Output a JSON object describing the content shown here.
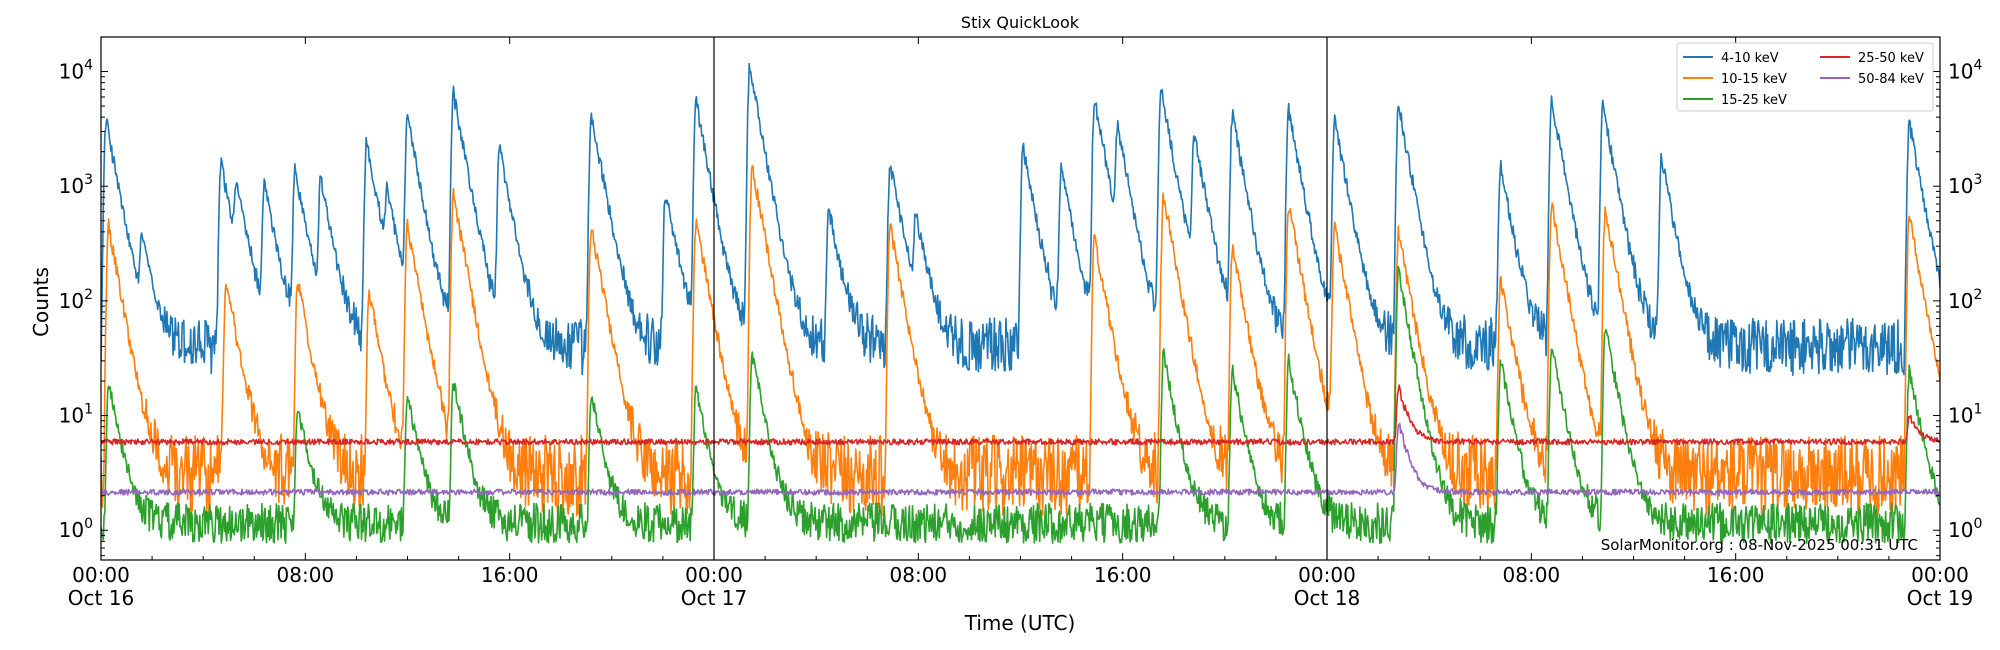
{
  "chart_data": {
    "type": "line",
    "title": "Stix QuickLook",
    "xlabel": "Time (UTC)",
    "ylabel": "Counts",
    "yscale": "log",
    "ylim": [
      0.55,
      20000
    ],
    "xlim_hours": [
      0,
      72
    ],
    "x_ticks": [
      {
        "hour": 0,
        "time": "00:00",
        "date": "Oct 16"
      },
      {
        "hour": 8,
        "time": "08:00",
        "date": ""
      },
      {
        "hour": 16,
        "time": "16:00",
        "date": ""
      },
      {
        "hour": 24,
        "time": "00:00",
        "date": "Oct 17"
      },
      {
        "hour": 32,
        "time": "08:00",
        "date": ""
      },
      {
        "hour": 40,
        "time": "16:00",
        "date": ""
      },
      {
        "hour": 48,
        "time": "00:00",
        "date": "Oct 18"
      },
      {
        "hour": 56,
        "time": "08:00",
        "date": ""
      },
      {
        "hour": 64,
        "time": "16:00",
        "date": ""
      },
      {
        "hour": 72,
        "time": "00:00",
        "date": "Oct 19"
      }
    ],
    "y_ticks": [
      {
        "value": 1,
        "mantissa": "10",
        "exp": "0"
      },
      {
        "value": 10,
        "mantissa": "10",
        "exp": "1"
      },
      {
        "value": 100,
        "mantissa": "10",
        "exp": "2"
      },
      {
        "value": 1000,
        "mantissa": "10",
        "exp": "3"
      },
      {
        "value": 10000,
        "mantissa": "10",
        "exp": "4"
      }
    ],
    "day_boundaries_hours": [
      24,
      48
    ],
    "legend_position": "top-right",
    "annotation": "SolarMonitor.org : 08-Nov-2025 00:31 UTC",
    "series": [
      {
        "name": "4-10 keV",
        "color": "#1f77b4",
        "baseline": 40,
        "noise": 0.5,
        "flares": [
          [
            0.2,
            3800
          ],
          [
            1.6,
            320
          ],
          [
            4.7,
            1600
          ],
          [
            5.3,
            850
          ],
          [
            6.4,
            1000
          ],
          [
            7.6,
            1350
          ],
          [
            8.6,
            1100
          ],
          [
            10.4,
            2500
          ],
          [
            11.2,
            700
          ],
          [
            12,
            4000
          ],
          [
            13.8,
            6500
          ],
          [
            15.6,
            2200
          ],
          [
            19.2,
            4300
          ],
          [
            22.1,
            900
          ],
          [
            23.3,
            5500
          ],
          [
            25.4,
            11000
          ],
          [
            28.5,
            650
          ],
          [
            30.9,
            1600
          ],
          [
            31.9,
            500
          ],
          [
            36.1,
            2200
          ],
          [
            37.6,
            1400
          ],
          [
            38.9,
            5700
          ],
          [
            39.8,
            3000
          ],
          [
            41.5,
            7000
          ],
          [
            42.8,
            2700
          ],
          [
            44.3,
            4200
          ],
          [
            46.5,
            4600
          ],
          [
            48.3,
            3800
          ],
          [
            50.8,
            5200
          ],
          [
            54.8,
            1500
          ],
          [
            56.8,
            5500
          ],
          [
            58.8,
            5000
          ],
          [
            61.1,
            1800
          ],
          [
            70.8,
            3600
          ]
        ]
      },
      {
        "name": "10-15 keV",
        "color": "#ff7f0e",
        "baseline": 3,
        "noise": 0.7,
        "flares": [
          [
            0.3,
            450
          ],
          [
            4.9,
            150
          ],
          [
            7.7,
            150
          ],
          [
            10.5,
            120
          ],
          [
            12,
            450
          ],
          [
            13.8,
            850
          ],
          [
            19.2,
            450
          ],
          [
            23.3,
            500
          ],
          [
            25.5,
            1500
          ],
          [
            30.9,
            450
          ],
          [
            38.9,
            350
          ],
          [
            41.6,
            850
          ],
          [
            44.3,
            300
          ],
          [
            46.5,
            700
          ],
          [
            48.3,
            450
          ],
          [
            50.8,
            400
          ],
          [
            54.8,
            150
          ],
          [
            56.8,
            700
          ],
          [
            58.9,
            650
          ],
          [
            70.8,
            550
          ]
        ]
      },
      {
        "name": "15-25 keV",
        "color": "#2ca02c",
        "baseline": 1.15,
        "noise": 0.35,
        "flares": [
          [
            0.3,
            20
          ],
          [
            7.7,
            12
          ],
          [
            12,
            15
          ],
          [
            13.8,
            20
          ],
          [
            19.2,
            15
          ],
          [
            23.3,
            18
          ],
          [
            25.5,
            35
          ],
          [
            41.6,
            35
          ],
          [
            44.3,
            25
          ],
          [
            46.5,
            30
          ],
          [
            50.8,
            180
          ],
          [
            54.8,
            30
          ],
          [
            56.8,
            40
          ],
          [
            58.9,
            60
          ],
          [
            70.8,
            25
          ]
        ]
      },
      {
        "name": "25-50 keV",
        "color": "#d62728",
        "baseline": 5.9,
        "noise": 0.05,
        "flares": [
          [
            50.8,
            18
          ],
          [
            70.8,
            10
          ]
        ]
      },
      {
        "name": "50-84 keV",
        "color": "#9467bd",
        "baseline": 2.15,
        "noise": 0.05,
        "flares": [
          [
            50.8,
            9
          ]
        ]
      }
    ]
  }
}
